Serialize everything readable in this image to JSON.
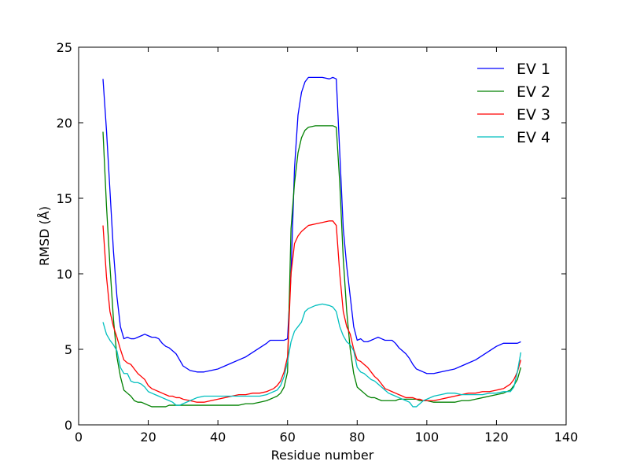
{
  "chart_data": {
    "type": "line",
    "title": "",
    "xlabel": "Residue number",
    "ylabel": "RMSD (Å)",
    "xlim": [
      0,
      140
    ],
    "ylim": [
      0,
      25
    ],
    "xticks": [
      0,
      20,
      40,
      60,
      80,
      100,
      120,
      140
    ],
    "yticks": [
      0,
      5,
      10,
      15,
      20,
      25
    ],
    "grid": false,
    "legend_position": "top-right",
    "x": [
      7,
      8,
      9,
      10,
      11,
      12,
      13,
      14,
      15,
      16,
      17,
      18,
      19,
      20,
      21,
      22,
      23,
      24,
      25,
      26,
      27,
      28,
      29,
      30,
      32,
      34,
      36,
      38,
      40,
      42,
      44,
      46,
      48,
      50,
      52,
      54,
      55,
      56,
      57,
      58,
      59,
      60,
      61,
      62,
      63,
      64,
      65,
      66,
      68,
      70,
      72,
      73,
      74,
      75,
      76,
      77,
      78,
      79,
      80,
      81,
      82,
      83,
      84,
      85,
      86,
      87,
      88,
      89,
      90,
      91,
      92,
      93,
      94,
      95,
      96,
      97,
      98,
      99,
      100,
      102,
      104,
      106,
      108,
      110,
      112,
      114,
      116,
      118,
      120,
      122,
      124,
      125,
      126,
      127
    ],
    "series": [
      {
        "name": "EV 1",
        "color": "#0000ff",
        "values": [
          22.9,
          19.5,
          15.5,
          11.5,
          8.5,
          6.5,
          5.7,
          5.8,
          5.7,
          5.7,
          5.8,
          5.9,
          6.0,
          5.9,
          5.8,
          5.8,
          5.7,
          5.4,
          5.2,
          5.1,
          4.9,
          4.7,
          4.3,
          3.9,
          3.6,
          3.5,
          3.5,
          3.6,
          3.7,
          3.9,
          4.1,
          4.3,
          4.5,
          4.8,
          5.1,
          5.4,
          5.6,
          5.6,
          5.6,
          5.6,
          5.6,
          5.7,
          10.0,
          17.0,
          20.5,
          22.0,
          22.7,
          23.0,
          23.0,
          23.0,
          22.9,
          23.0,
          22.9,
          18.0,
          13.0,
          10.5,
          8.5,
          6.5,
          5.6,
          5.7,
          5.5,
          5.5,
          5.6,
          5.7,
          5.8,
          5.7,
          5.6,
          5.6,
          5.6,
          5.4,
          5.1,
          4.9,
          4.7,
          4.4,
          4.0,
          3.7,
          3.6,
          3.5,
          3.4,
          3.4,
          3.5,
          3.6,
          3.7,
          3.9,
          4.1,
          4.3,
          4.6,
          4.9,
          5.2,
          5.4,
          5.4,
          5.4,
          5.4,
          5.5
        ]
      },
      {
        "name": "EV 2",
        "color": "#008000",
        "values": [
          19.4,
          14.5,
          10.5,
          7.0,
          4.5,
          3.2,
          2.3,
          2.1,
          1.9,
          1.6,
          1.5,
          1.5,
          1.4,
          1.3,
          1.2,
          1.2,
          1.2,
          1.2,
          1.2,
          1.3,
          1.3,
          1.3,
          1.3,
          1.3,
          1.3,
          1.3,
          1.3,
          1.3,
          1.3,
          1.3,
          1.3,
          1.3,
          1.4,
          1.4,
          1.5,
          1.6,
          1.7,
          1.8,
          1.9,
          2.1,
          2.5,
          3.5,
          13.0,
          16.0,
          18.0,
          19.0,
          19.5,
          19.7,
          19.8,
          19.8,
          19.8,
          19.8,
          19.7,
          16.0,
          11.0,
          7.5,
          5.0,
          3.4,
          2.5,
          2.3,
          2.1,
          1.9,
          1.8,
          1.8,
          1.7,
          1.6,
          1.6,
          1.6,
          1.6,
          1.6,
          1.7,
          1.7,
          1.7,
          1.7,
          1.7,
          1.7,
          1.6,
          1.6,
          1.6,
          1.5,
          1.5,
          1.5,
          1.5,
          1.6,
          1.6,
          1.7,
          1.8,
          1.9,
          2.0,
          2.1,
          2.3,
          2.6,
          3.0,
          3.8
        ]
      },
      {
        "name": "EV 3",
        "color": "#ff0000",
        "values": [
          13.2,
          9.8,
          7.5,
          6.5,
          5.8,
          5.0,
          4.3,
          4.1,
          4.0,
          3.7,
          3.4,
          3.2,
          3.0,
          2.6,
          2.4,
          2.3,
          2.2,
          2.1,
          2.0,
          1.9,
          1.9,
          1.8,
          1.8,
          1.7,
          1.6,
          1.5,
          1.5,
          1.6,
          1.7,
          1.8,
          1.9,
          2.0,
          2.0,
          2.1,
          2.1,
          2.2,
          2.3,
          2.4,
          2.6,
          2.9,
          3.5,
          4.5,
          10.0,
          12.0,
          12.5,
          12.8,
          13.0,
          13.2,
          13.3,
          13.4,
          13.5,
          13.5,
          13.2,
          10.0,
          7.5,
          6.5,
          6.0,
          5.0,
          4.3,
          4.2,
          4.0,
          3.8,
          3.5,
          3.2,
          3.0,
          2.7,
          2.4,
          2.3,
          2.2,
          2.1,
          2.0,
          1.9,
          1.8,
          1.8,
          1.8,
          1.7,
          1.7,
          1.6,
          1.6,
          1.6,
          1.7,
          1.8,
          1.9,
          2.0,
          2.1,
          2.1,
          2.2,
          2.2,
          2.3,
          2.4,
          2.7,
          3.0,
          3.5,
          4.3
        ]
      },
      {
        "name": "EV 4",
        "color": "#00bfbf",
        "values": [
          6.8,
          6.0,
          5.6,
          5.3,
          4.9,
          3.8,
          3.4,
          3.4,
          2.9,
          2.8,
          2.8,
          2.7,
          2.5,
          2.2,
          2.1,
          2.0,
          1.9,
          1.8,
          1.7,
          1.6,
          1.5,
          1.3,
          1.3,
          1.4,
          1.6,
          1.8,
          1.9,
          1.9,
          1.9,
          1.9,
          1.9,
          1.9,
          1.9,
          1.9,
          1.9,
          2.0,
          2.1,
          2.2,
          2.3,
          2.6,
          3.2,
          4.2,
          5.5,
          6.2,
          6.5,
          6.8,
          7.5,
          7.7,
          7.9,
          8.0,
          7.9,
          7.8,
          7.5,
          6.5,
          5.9,
          5.5,
          5.3,
          4.9,
          3.8,
          3.5,
          3.4,
          3.2,
          3.0,
          2.9,
          2.7,
          2.5,
          2.3,
          2.1,
          2.0,
          1.9,
          1.8,
          1.7,
          1.6,
          1.5,
          1.2,
          1.2,
          1.4,
          1.6,
          1.7,
          1.9,
          2.0,
          2.1,
          2.1,
          2.0,
          2.0,
          2.0,
          2.0,
          2.1,
          2.1,
          2.2,
          2.2,
          2.5,
          3.5,
          4.8
        ]
      }
    ]
  }
}
